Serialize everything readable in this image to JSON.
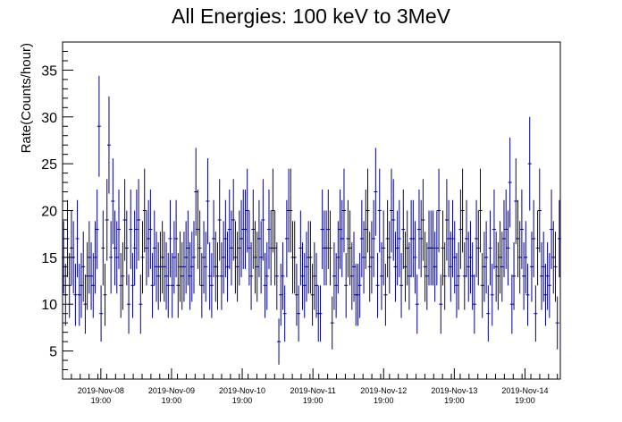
{
  "chart_data": {
    "type": "scatter",
    "style": "error-bars",
    "title": "All Energies:  100 keV to 3MeV",
    "ylabel": "Rate(Counts/hour)",
    "xlabel": "",
    "ylim": [
      2,
      38
    ],
    "yticks": [
      5,
      10,
      15,
      20,
      25,
      30,
      35
    ],
    "x_unit": "hours since the start of the run",
    "xlim": [
      0,
      169
    ],
    "xticks": [
      {
        "x": 13,
        "date": "2019-Nov-08",
        "time": "19:00"
      },
      {
        "x": 37,
        "date": "2019-Nov-09",
        "time": "19:00"
      },
      {
        "x": 61,
        "date": "2019-Nov-10",
        "time": "19:00"
      },
      {
        "x": 85,
        "date": "2019-Nov-11",
        "time": "19:00"
      },
      {
        "x": 109,
        "date": "2019-Nov-12",
        "time": "19:00"
      },
      {
        "x": 133,
        "date": "2019-Nov-13",
        "time": "19:00"
      },
      {
        "x": 157,
        "date": "2019-Nov-14",
        "time": "19:00"
      }
    ],
    "color": "#000080",
    "grid": false,
    "series": [
      {
        "values": [
          15,
          11,
          17,
          12,
          16,
          15,
          11,
          17,
          11,
          12,
          14,
          10,
          13,
          15,
          13,
          12,
          15,
          18,
          29,
          9,
          16,
          11,
          19,
          27,
          15,
          21,
          16,
          15,
          18,
          12,
          13,
          19,
          16,
          10,
          18,
          12,
          16,
          18,
          19,
          10,
          15,
          20,
          16,
          17,
          18,
          12,
          16,
          14,
          13,
          14,
          15,
          14,
          13,
          12,
          17,
          12,
          15,
          17,
          12,
          14,
          13,
          14,
          15,
          16,
          13,
          14,
          15,
          22,
          18,
          16,
          12,
          15,
          14,
          21,
          13,
          12,
          17,
          14,
          13,
          19,
          13,
          15,
          17,
          14,
          18,
          16,
          19,
          15,
          14,
          16,
          17,
          18,
          18,
          20,
          16,
          13,
          18,
          15,
          14,
          17,
          15,
          19,
          12,
          13,
          18,
          16,
          20,
          16,
          13,
          6,
          11,
          13,
          9,
          17,
          20,
          20,
          15,
          15,
          11,
          9,
          16,
          13,
          12,
          14,
          15,
          15,
          11,
          13,
          12,
          9,
          9,
          18,
          16,
          16,
          18,
          16,
          8,
          13,
          12,
          15,
          18,
          17,
          20,
          12,
          17,
          16,
          13,
          14,
          11,
          11,
          12,
          17,
          15,
          18,
          20,
          14,
          15,
          17,
          22,
          12,
          20,
          13,
          16,
          11,
          17,
          15,
          20,
          19,
          14,
          16,
          17,
          12,
          18,
          14,
          16,
          13,
          17,
          17,
          15,
          10,
          18,
          17,
          19,
          14,
          13,
          16,
          16,
          16,
          14,
          16,
          20,
          10,
          16,
          13,
          19,
          17,
          14,
          17,
          15,
          12,
          13,
          18,
          20,
          13,
          17,
          14,
          15,
          13,
          10,
          17,
          16,
          20,
          12,
          14,
          15,
          9,
          16,
          11,
          18,
          14,
          13,
          15,
          14,
          17,
          18,
          16,
          23,
          10,
          13,
          21,
          17,
          15,
          18,
          13,
          15,
          11,
          25,
          14,
          17,
          9,
          16,
          20,
          13,
          14,
          11,
          13,
          12,
          18,
          15,
          14,
          8,
          17
        ]
      }
    ]
  }
}
